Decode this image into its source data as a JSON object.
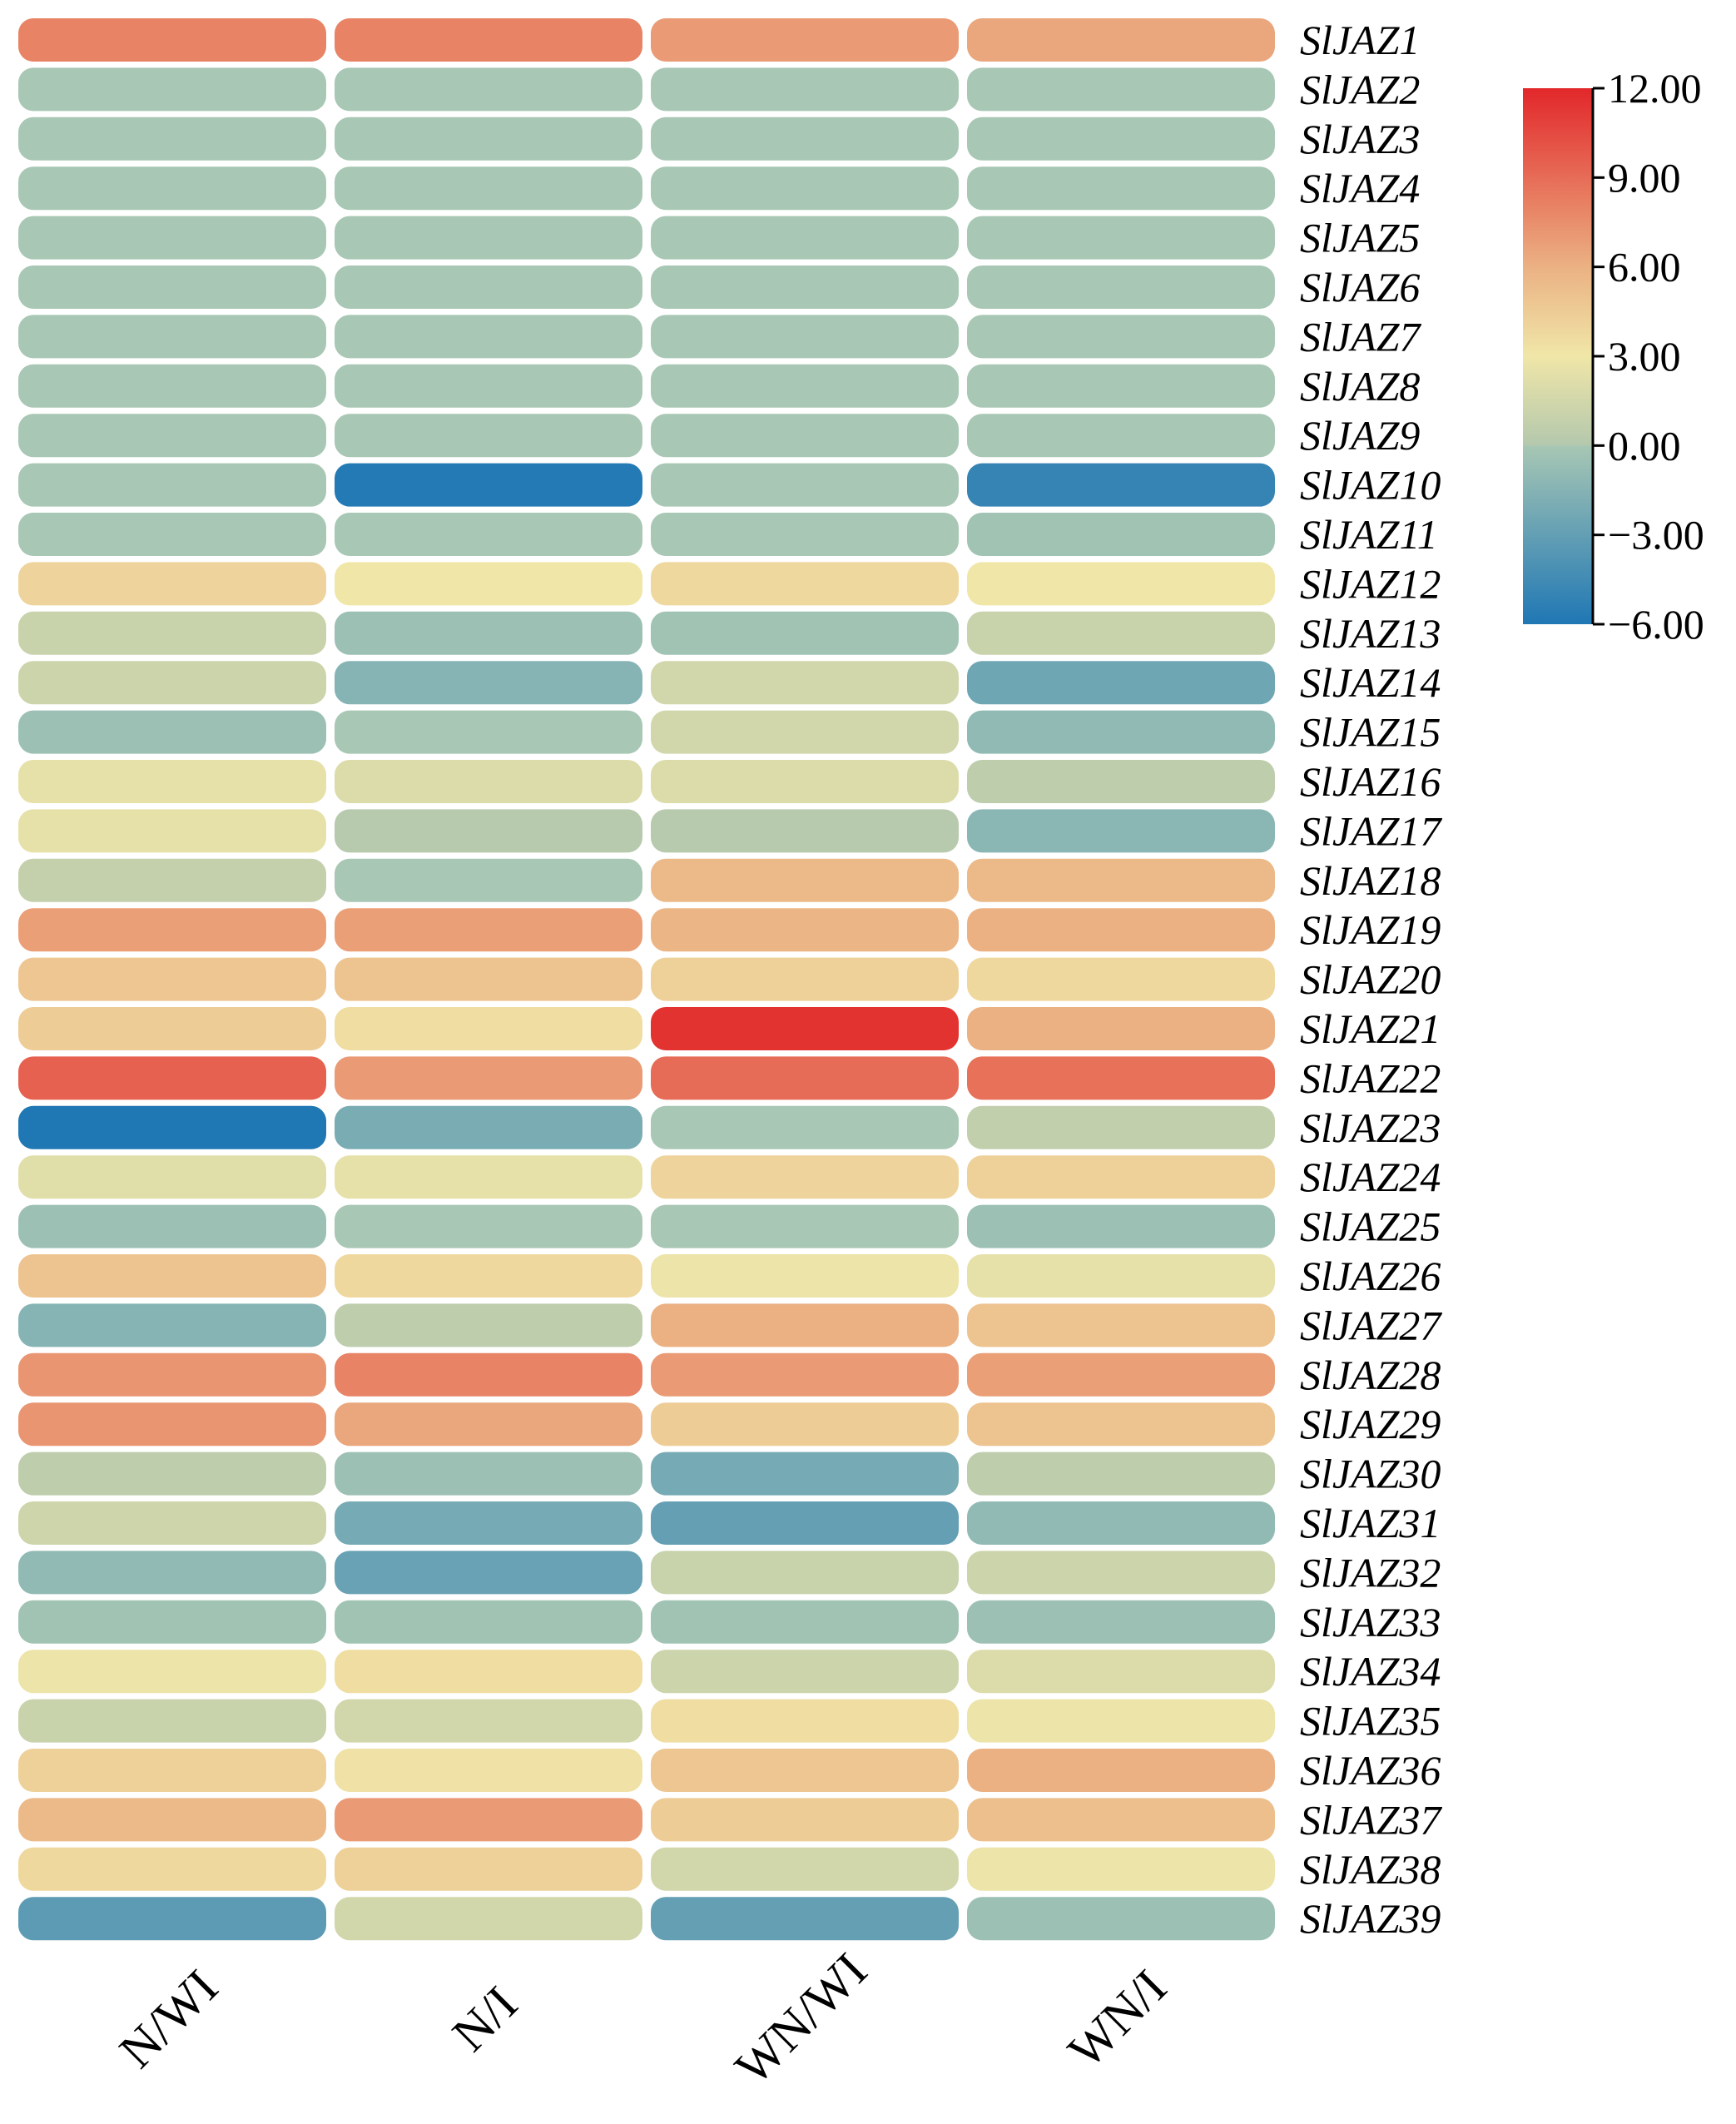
{
  "chart_data": {
    "type": "heatmap",
    "title": "",
    "columns": [
      "N/WI",
      "N/I",
      "WN/WI",
      "WN/I"
    ],
    "rows": [
      "SlJAZ1",
      "SlJAZ2",
      "SlJAZ3",
      "SlJAZ4",
      "SlJAZ5",
      "SlJAZ6",
      "SlJAZ7",
      "SlJAZ8",
      "SlJAZ9",
      "SlJAZ10",
      "SlJAZ11",
      "SlJAZ12",
      "SlJAZ13",
      "SlJAZ14",
      "SlJAZ15",
      "SlJAZ16",
      "SlJAZ17",
      "SlJAZ18",
      "SlJAZ19",
      "SlJAZ20",
      "SlJAZ21",
      "SlJAZ22",
      "SlJAZ23",
      "SlJAZ24",
      "SlJAZ25",
      "SlJAZ26",
      "SlJAZ27",
      "SlJAZ28",
      "SlJAZ29",
      "SlJAZ30",
      "SlJAZ31",
      "SlJAZ32",
      "SlJAZ33",
      "SlJAZ34",
      "SlJAZ35",
      "SlJAZ36",
      "SlJAZ37",
      "SlJAZ38",
      "SlJAZ39"
    ],
    "values": [
      [
        8.0,
        8.0,
        7.0,
        6.5
      ],
      [
        0.0,
        0.0,
        0.0,
        0.0
      ],
      [
        0.0,
        0.0,
        0.0,
        0.0
      ],
      [
        0.0,
        0.0,
        0.0,
        0.0
      ],
      [
        0.0,
        0.0,
        0.0,
        0.0
      ],
      [
        0.0,
        0.0,
        0.0,
        0.0
      ],
      [
        0.0,
        0.0,
        0.0,
        0.0
      ],
      [
        0.0,
        0.0,
        0.0,
        0.0
      ],
      [
        0.0,
        0.0,
        0.0,
        0.0
      ],
      [
        0.0,
        -5.8,
        0.0,
        -5.0
      ],
      [
        0.0,
        0.0,
        0.0,
        -0.3
      ],
      [
        4.0,
        3.0,
        3.8,
        3.0
      ],
      [
        1.0,
        -0.5,
        -0.3,
        1.0
      ],
      [
        1.2,
        -1.5,
        1.5,
        -2.5
      ],
      [
        -0.5,
        0.0,
        1.5,
        -1.0
      ],
      [
        2.5,
        2.0,
        2.0,
        0.5
      ],
      [
        2.5,
        0.2,
        0.2,
        -1.3
      ],
      [
        0.8,
        0.0,
        5.5,
        5.5
      ],
      [
        6.8,
        6.8,
        5.8,
        6.0
      ],
      [
        4.8,
        5.0,
        4.2,
        3.8
      ],
      [
        4.5,
        3.5,
        11.5,
        6.0
      ],
      [
        9.5,
        7.0,
        9.0,
        8.8
      ],
      [
        -6.0,
        -2.0,
        0.0,
        0.7
      ],
      [
        2.2,
        2.5,
        4.0,
        4.2
      ],
      [
        -0.5,
        0.0,
        0.0,
        -0.5
      ],
      [
        5.0,
        3.8,
        2.8,
        2.5
      ],
      [
        -1.5,
        0.5,
        6.0,
        5.0
      ],
      [
        7.2,
        8.0,
        7.0,
        6.8
      ],
      [
        7.2,
        6.5,
        4.5,
        5.0
      ],
      [
        0.5,
        -0.5,
        -2.2,
        0.5
      ],
      [
        1.3,
        -2.2,
        -3.0,
        -1.0
      ],
      [
        -1.0,
        -2.8,
        1.0,
        1.2
      ],
      [
        -0.3,
        -0.3,
        -0.3,
        -0.5
      ],
      [
        2.8,
        3.5,
        1.2,
        2.0
      ],
      [
        1.0,
        1.5,
        3.5,
        2.8
      ],
      [
        4.2,
        3.2,
        4.8,
        6.0
      ],
      [
        5.5,
        7.0,
        4.5,
        5.2
      ],
      [
        3.8,
        4.2,
        1.5,
        2.8
      ],
      [
        -3.3,
        1.5,
        -3.0,
        -0.5
      ]
    ],
    "colorbar": {
      "min": -6.0,
      "max": 12.0,
      "ticks": [
        12.0,
        9.0,
        6.0,
        3.0,
        0.0,
        -3.0,
        -6.0
      ],
      "tick_labels": [
        "12.00",
        "9.00",
        "6.00",
        "3.00",
        "0.00",
        "−3.00",
        "−6.00"
      ],
      "colors": [
        "#1f77b4",
        "#a8c7b4",
        "#b4c8ad",
        "#f0e6a8",
        "#ebb183",
        "#e2272a"
      ],
      "stops": [
        -6.0,
        0.0,
        0.0,
        3.0,
        6.0,
        12.0
      ]
    }
  }
}
